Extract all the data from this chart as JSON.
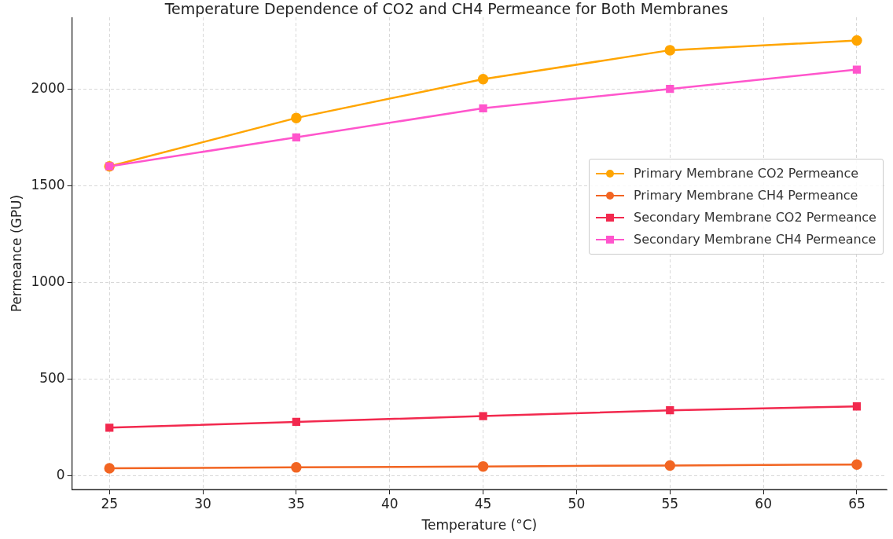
{
  "chart_data": {
    "type": "line",
    "title": "Temperature Dependence of CO2 and CH4 Permeance for Both Membranes",
    "xlabel": "Temperature (°C)",
    "ylabel": "Permeance (GPU)",
    "x": [
      25,
      35,
      45,
      55,
      65
    ],
    "series": [
      {
        "name": "Primary Membrane CO2 Permeance",
        "color": "#ffa500",
        "marker": "circle",
        "values": [
          1600,
          1850,
          2050,
          2200,
          2250
        ]
      },
      {
        "name": "Primary Membrane CH4 Permeance",
        "color": "#f26522",
        "marker": "circle",
        "values": [
          40,
          45,
          50,
          55,
          60
        ]
      },
      {
        "name": "Secondary Membrane CO2 Permeance",
        "color": "#f2294e",
        "marker": "square",
        "values": [
          250,
          280,
          310,
          340,
          360
        ]
      },
      {
        "name": "Secondary Membrane CH4 Permeance",
        "color": "#ff55cc",
        "marker": "square",
        "values": [
          1600,
          1750,
          1900,
          2000,
          2100
        ]
      }
    ],
    "xlim": [
      23,
      66.6
    ],
    "xticks": [
      25,
      30,
      35,
      40,
      45,
      50,
      55,
      60,
      65
    ],
    "ylim": [
      -70,
      2370
    ],
    "yticks": [
      0,
      500,
      1000,
      1500,
      2000
    ],
    "grid": true,
    "legend": "right",
    "line_style": "solid"
  }
}
